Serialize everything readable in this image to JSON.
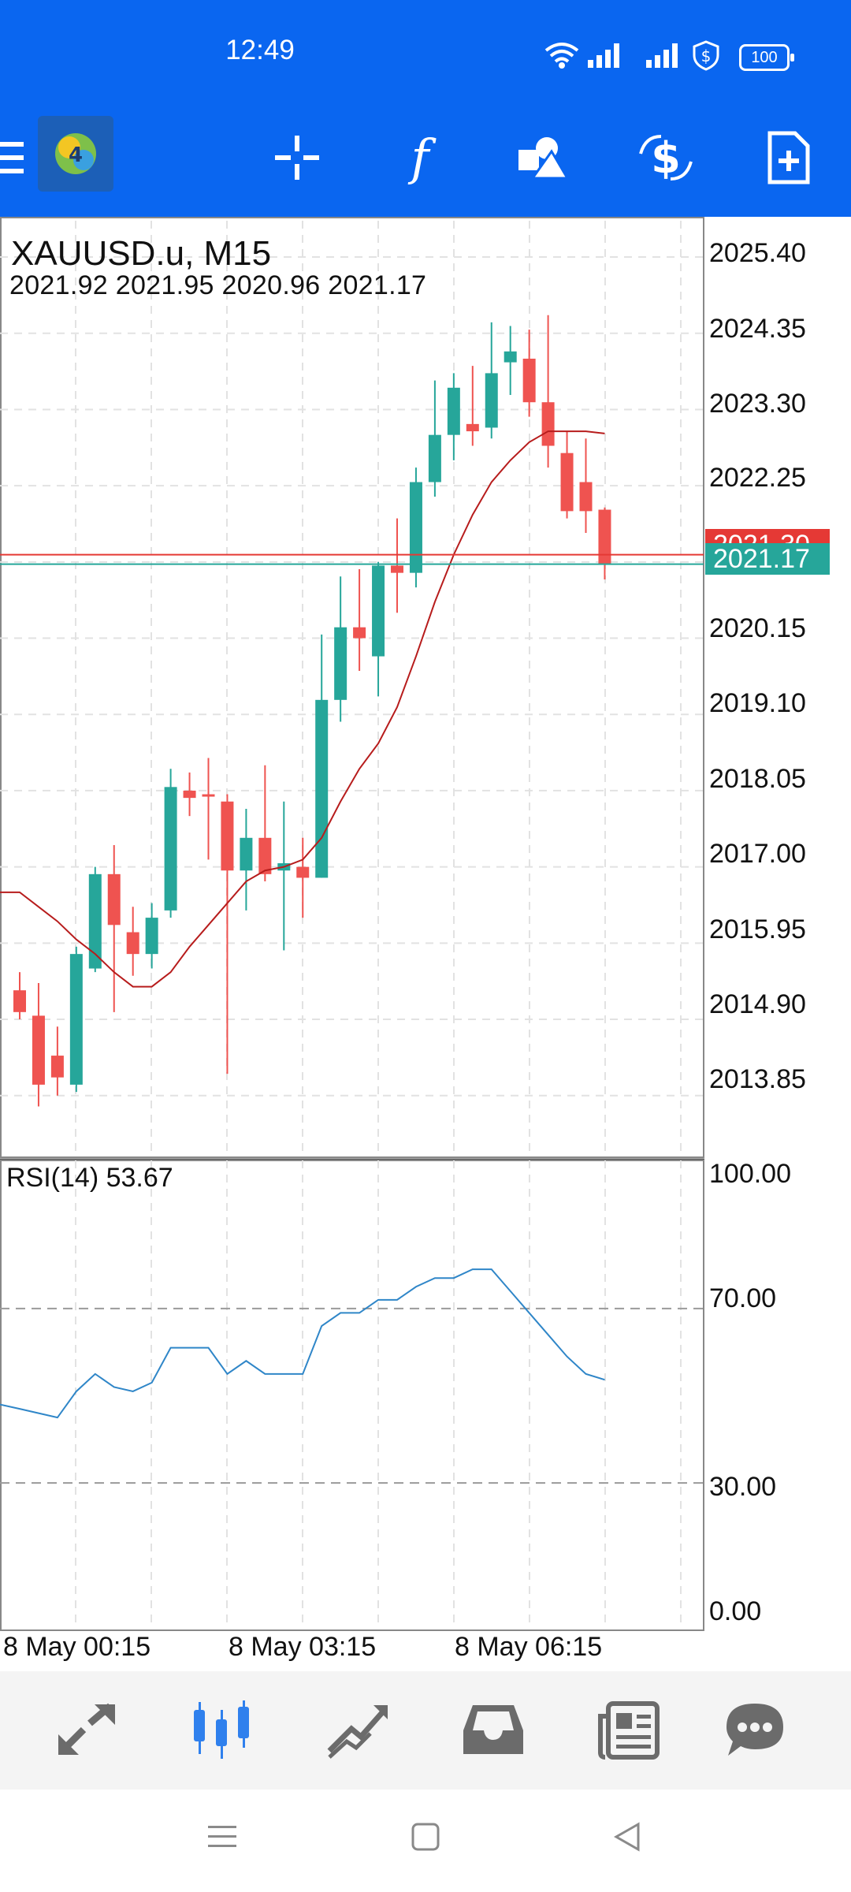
{
  "status_bar": {
    "time": "12:49",
    "battery": "100",
    "icons": [
      "wifi-icon",
      "signal-icon",
      "signal-icon",
      "shield-icon",
      "battery-icon"
    ]
  },
  "toolbar": {
    "items": [
      "menu-icon",
      "app-logo",
      "crosshair-icon",
      "function-icon",
      "objects-icon",
      "currency-icon",
      "new-order-icon"
    ]
  },
  "chart": {
    "symbol": "XAUUSD.u, M15",
    "ohlc": "2021.92 2021.95 2020.96 2021.17",
    "price_axis": [
      "2025.40",
      "2024.35",
      "2023.30",
      "2022.25",
      "2021.30",
      "2021.17",
      "2020.15",
      "2019.10",
      "2018.05",
      "2017.00",
      "2015.95",
      "2014.90",
      "2013.85"
    ],
    "bid_tag": "2021.17",
    "ask_tag": "2021.30",
    "rsi_label": "RSI(14) 53.67",
    "rsi_axis": [
      "100.00",
      "70.00",
      "30.00",
      "0.00"
    ],
    "time_axis": [
      "8 May 00:15",
      "8 May 03:15",
      "8 May 06:15"
    ],
    "colors": {
      "bull": "#26a69a",
      "bear": "#ef5350",
      "ma": "#b71c1c",
      "rsi": "#2f86c8",
      "ask_line": "#e53935",
      "bid_line": "#26a69a"
    }
  },
  "chart_data": [
    {
      "type": "candlestick",
      "title": "XAUUSD.u, M15",
      "ylim": [
        2013.0,
        2025.9
      ],
      "candles": [
        {
          "o": 2015.3,
          "h": 2015.55,
          "l": 2014.9,
          "c": 2015.0
        },
        {
          "o": 2014.95,
          "h": 2015.4,
          "l": 2013.7,
          "c": 2014.0
        },
        {
          "o": 2014.4,
          "h": 2014.8,
          "l": 2013.85,
          "c": 2014.1
        },
        {
          "o": 2014.0,
          "h": 2015.9,
          "l": 2013.9,
          "c": 2015.8
        },
        {
          "o": 2015.6,
          "h": 2017.0,
          "l": 2015.55,
          "c": 2016.9
        },
        {
          "o": 2016.9,
          "h": 2017.3,
          "l": 2015.0,
          "c": 2016.2
        },
        {
          "o": 2016.1,
          "h": 2016.45,
          "l": 2015.5,
          "c": 2015.8
        },
        {
          "o": 2015.8,
          "h": 2016.5,
          "l": 2015.6,
          "c": 2016.3
        },
        {
          "o": 2016.4,
          "h": 2018.35,
          "l": 2016.3,
          "c": 2018.1
        },
        {
          "o": 2018.05,
          "h": 2018.3,
          "l": 2017.7,
          "c": 2017.95
        },
        {
          "o": 2018.0,
          "h": 2018.5,
          "l": 2017.1,
          "c": 2017.98
        },
        {
          "o": 2017.9,
          "h": 2018.0,
          "l": 2014.15,
          "c": 2016.95
        },
        {
          "o": 2016.95,
          "h": 2017.8,
          "l": 2016.4,
          "c": 2017.4
        },
        {
          "o": 2017.4,
          "h": 2018.4,
          "l": 2016.8,
          "c": 2016.9
        },
        {
          "o": 2016.95,
          "h": 2017.9,
          "l": 2015.85,
          "c": 2017.05
        },
        {
          "o": 2017.0,
          "h": 2017.4,
          "l": 2016.3,
          "c": 2016.85
        },
        {
          "o": 2016.85,
          "h": 2020.2,
          "l": 2016.85,
          "c": 2019.3
        },
        {
          "o": 2019.3,
          "h": 2021.0,
          "l": 2019.0,
          "c": 2020.3
        },
        {
          "o": 2020.3,
          "h": 2021.1,
          "l": 2019.7,
          "c": 2020.15
        },
        {
          "o": 2019.9,
          "h": 2021.2,
          "l": 2019.35,
          "c": 2021.15
        },
        {
          "o": 2021.15,
          "h": 2021.8,
          "l": 2020.5,
          "c": 2021.05
        },
        {
          "o": 2021.05,
          "h": 2022.5,
          "l": 2020.85,
          "c": 2022.3
        },
        {
          "o": 2022.3,
          "h": 2023.7,
          "l": 2022.1,
          "c": 2022.95
        },
        {
          "o": 2022.95,
          "h": 2023.8,
          "l": 2022.6,
          "c": 2023.6
        },
        {
          "o": 2023.1,
          "h": 2023.9,
          "l": 2022.8,
          "c": 2023.0
        },
        {
          "o": 2023.05,
          "h": 2024.5,
          "l": 2022.9,
          "c": 2023.8
        },
        {
          "o": 2023.95,
          "h": 2024.45,
          "l": 2023.5,
          "c": 2024.1
        },
        {
          "o": 2024.0,
          "h": 2024.4,
          "l": 2023.2,
          "c": 2023.4
        },
        {
          "o": 2023.4,
          "h": 2024.6,
          "l": 2022.5,
          "c": 2022.8
        },
        {
          "o": 2022.7,
          "h": 2023.0,
          "l": 2021.8,
          "c": 2021.9
        },
        {
          "o": 2022.3,
          "h": 2022.9,
          "l": 2021.6,
          "c": 2021.9
        },
        {
          "o": 2021.92,
          "h": 2021.95,
          "l": 2020.96,
          "c": 2021.17
        }
      ],
      "ma": [
        2016.65,
        2016.45,
        2016.25,
        2016.0,
        2015.8,
        2015.55,
        2015.35,
        2015.35,
        2015.55,
        2015.9,
        2016.2,
        2016.5,
        2016.8,
        2016.95,
        2017.0,
        2017.1,
        2017.4,
        2017.9,
        2018.35,
        2018.7,
        2019.2,
        2019.9,
        2020.65,
        2021.3,
        2021.85,
        2022.3,
        2022.6,
        2022.85,
        2023.0,
        2023.0,
        2023.0,
        2022.97
      ],
      "ask": 2021.3,
      "bid": 2021.17
    },
    {
      "type": "line",
      "title": "RSI(14) 53.67",
      "ylim": [
        0,
        100
      ],
      "values": [
        47,
        46,
        45,
        51,
        55,
        52,
        51,
        53,
        61,
        61,
        61,
        55,
        58,
        55,
        55,
        55,
        66,
        69,
        69,
        72,
        72,
        75,
        77,
        77,
        79,
        79,
        74,
        69,
        64,
        59,
        55,
        53.67
      ]
    }
  ]
}
